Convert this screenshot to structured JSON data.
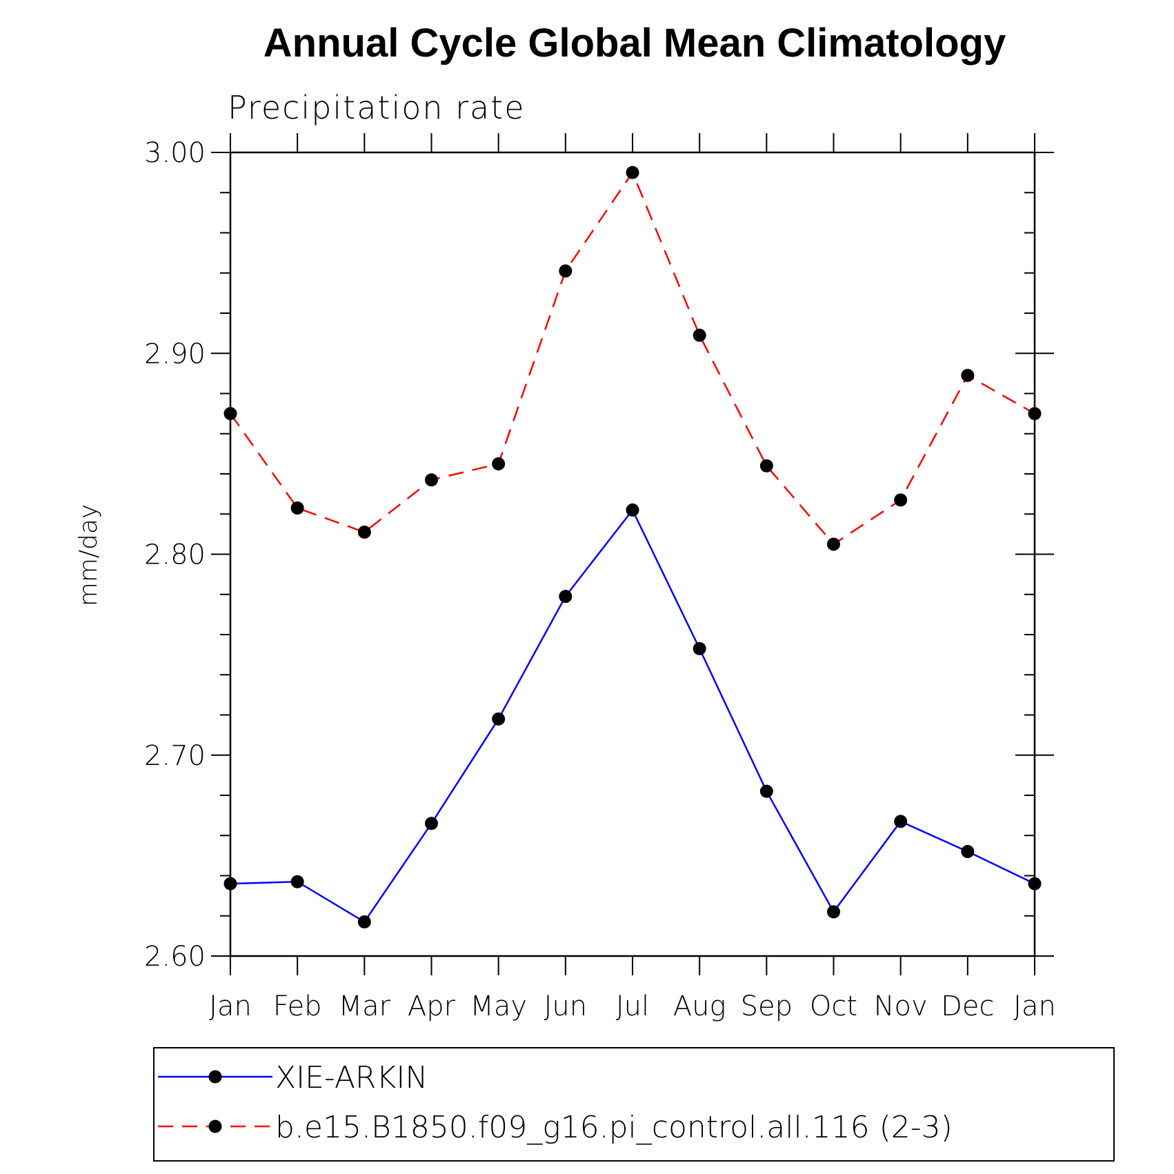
{
  "chart_data": {
    "type": "line",
    "title": "Annual Cycle Global Mean Climatology",
    "subtitle": "Precipitation rate",
    "ylabel": "mm/day",
    "xlabel": "",
    "categories": [
      "Jan",
      "Feb",
      "Mar",
      "Apr",
      "May",
      "Jun",
      "Jul",
      "Aug",
      "Sep",
      "Oct",
      "Nov",
      "Dec",
      "Jan"
    ],
    "ylim": [
      2.6,
      3.0
    ],
    "yticks": [
      2.6,
      2.7,
      2.8,
      2.9,
      3.0
    ],
    "ytick_labels": [
      "2.60",
      "2.70",
      "2.80",
      "2.90",
      "3.00"
    ],
    "yminor_step": 0.02,
    "grid": false,
    "legend_placement": "bottom",
    "series": [
      {
        "name": "XIE-ARKIN",
        "color": "#0000ff",
        "dash": "solid",
        "marker": "filled-circle",
        "values": [
          2.636,
          2.637,
          2.617,
          2.666,
          2.718,
          2.779,
          2.822,
          2.753,
          2.682,
          2.622,
          2.667,
          2.652,
          2.636
        ]
      },
      {
        "name": "b.e15.B1850.f09_g16.pi_control.all.116 (2-3)",
        "color": "#ff0000",
        "dash": "dashed",
        "marker": "filled-circle",
        "values": [
          2.87,
          2.823,
          2.811,
          2.837,
          2.845,
          2.941,
          2.99,
          2.909,
          2.844,
          2.805,
          2.827,
          2.889,
          2.87
        ]
      }
    ]
  }
}
